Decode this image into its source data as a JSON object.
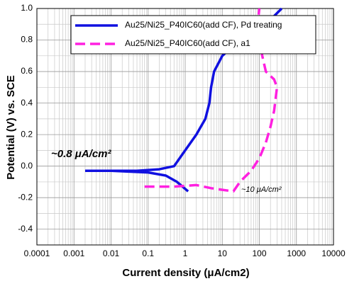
{
  "chart_data": {
    "type": "line",
    "x_label": "Current density (μA/cm2)",
    "y_label": "Potential (V) vs. SCE",
    "xscale": "log",
    "xlim": [
      0.0001,
      10000
    ],
    "xticks": [
      0.0001,
      0.001,
      0.01,
      0.1,
      1,
      10,
      100,
      1000,
      10000
    ],
    "ylim": [
      -0.5,
      1.0
    ],
    "yticks": [
      -0.4,
      -0.2,
      {
        "value": 0,
        "label": "0.0"
      },
      0.2,
      0.4,
      0.6,
      0.8,
      {
        "value": 1,
        "label": "1.0"
      }
    ],
    "grid": true,
    "legend": "upper center",
    "series": [
      {
        "name": "Au25/Ni25_P40IC60(add CF), Pd treating",
        "color": "#1010e0",
        "dash": "solid",
        "x": [
          1.2,
          0.6,
          0.3,
          0.1,
          0.01,
          0.002,
          null,
          0.002,
          0.05,
          0.2,
          0.5,
          1,
          2,
          3.5,
          4.5,
          5,
          6,
          10,
          30,
          150,
          400
        ],
        "values": [
          -0.16,
          -0.1,
          -0.06,
          -0.04,
          -0.03,
          -0.03,
          null,
          -0.03,
          -0.03,
          -0.02,
          0.0,
          0.1,
          0.2,
          0.3,
          0.4,
          0.5,
          0.6,
          0.7,
          0.8,
          0.9,
          1.0
        ]
      },
      {
        "name": "Au25/Ni25_P40IC60(add CF), a1",
        "color": "#ff20e0",
        "dash": "dashed",
        "x": [
          0.08,
          0.5,
          2,
          5,
          10,
          20,
          30,
          60,
          100,
          150,
          200,
          250,
          300,
          250,
          150,
          120,
          100,
          90,
          100
        ],
        "values": [
          -0.13,
          -0.13,
          -0.12,
          -0.14,
          -0.15,
          -0.16,
          -0.1,
          -0.03,
          0.05,
          0.15,
          0.25,
          0.35,
          0.5,
          0.55,
          0.6,
          0.7,
          0.8,
          0.9,
          1.0
        ]
      }
    ],
    "annotations": [
      {
        "text": "~0.8 μA/cm²",
        "color": "#ff0000"
      },
      {
        "text": "~10 μA/cm²",
        "color": "#000000"
      }
    ]
  }
}
